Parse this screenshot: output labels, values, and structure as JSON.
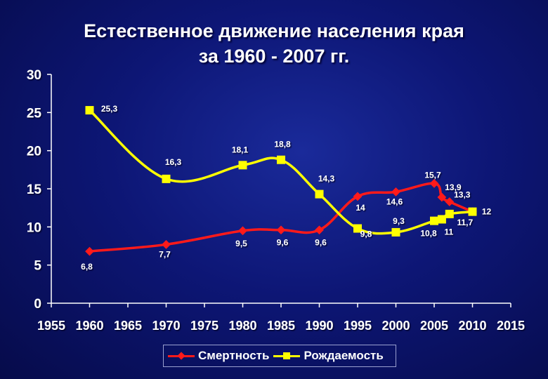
{
  "title": {
    "line1": "Естественное движение населения края",
    "line2": "за 1960 - 2007 гг."
  },
  "colors": {
    "background": "#0d1675",
    "mortality": "#ff1a1a",
    "birth": "#ffff00",
    "axis": "#ffffff"
  },
  "chart_data": {
    "type": "line",
    "title": "Естественное движение населения края за 1960 - 2007 гг.",
    "xlabel": "",
    "ylabel": "",
    "xlim": [
      1955,
      2015
    ],
    "ylim": [
      0,
      30
    ],
    "x_ticks": [
      1955,
      1960,
      1965,
      1970,
      1975,
      1980,
      1985,
      1990,
      1995,
      2000,
      2005,
      2010,
      2015
    ],
    "y_ticks": [
      0,
      5,
      10,
      15,
      20,
      25,
      30
    ],
    "grid": false,
    "legend_position": "bottom",
    "series": [
      {
        "name": "Смертность",
        "color": "#ff1a1a",
        "marker": "diamond",
        "x": [
          1960,
          1970,
          1980,
          1985,
          1990,
          1995,
          2000,
          2005,
          2006,
          2007,
          2010
        ],
        "y": [
          6.8,
          7.7,
          9.5,
          9.6,
          9.6,
          14.0,
          14.6,
          15.7,
          13.9,
          13.3,
          12.0
        ],
        "labels": [
          "6,8",
          "7,7",
          "9,5",
          "9,6",
          "9,6",
          "14",
          "14,6",
          "15,7",
          "13,9",
          "13,3",
          "12"
        ]
      },
      {
        "name": "Рождаемость",
        "color": "#ffff00",
        "marker": "square",
        "x": [
          1960,
          1970,
          1980,
          1985,
          1990,
          1995,
          2000,
          2005,
          2006,
          2007,
          2010
        ],
        "y": [
          25.3,
          16.3,
          18.1,
          18.8,
          14.3,
          9.8,
          9.3,
          10.8,
          11.0,
          11.7,
          12.0
        ],
        "labels": [
          "25,3",
          "16,3",
          "18,1",
          "18,8",
          "14,3",
          "9,8",
          "9,3",
          "10,8",
          "11",
          "11,7",
          ""
        ]
      }
    ]
  }
}
